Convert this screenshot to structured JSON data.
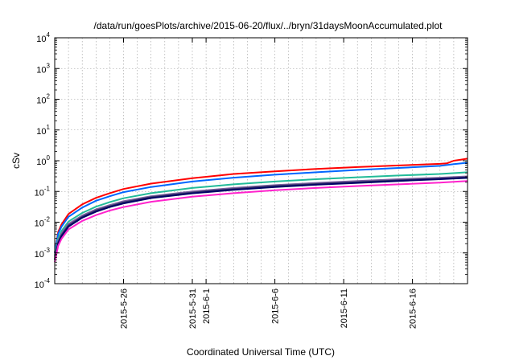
{
  "chart_data": {
    "type": "line",
    "title": "/data/run/goesPlots/archive/2015-06-20/flux/../bryn/31daysMoonAccumulated.plot",
    "xlabel": "Coordinated Universal Time (UTC)",
    "ylabel": "cSv",
    "yscale": "log",
    "ylim": [
      0.0001,
      10000
    ],
    "xlim": [
      "2015-05-21T00:00",
      "2015-06-20T00:00"
    ],
    "grid": true,
    "x_ticks": [
      {
        "date": "2015-05-26",
        "label": "2015-5-26"
      },
      {
        "date": "2015-05-31",
        "label": "2015-5-31"
      },
      {
        "date": "2015-06-01",
        "label": "2015-6-1"
      },
      {
        "date": "2015-06-06",
        "label": "2015-6-6"
      },
      {
        "date": "2015-06-11",
        "label": "2015-6-11"
      },
      {
        "date": "2015-06-16",
        "label": "2015-6-16"
      }
    ],
    "y_ticks": [
      {
        "value": 0.0001,
        "base": "10",
        "exp": "-4"
      },
      {
        "value": 0.001,
        "base": "10",
        "exp": "-3"
      },
      {
        "value": 0.01,
        "base": "10",
        "exp": "-2"
      },
      {
        "value": 0.1,
        "base": "10",
        "exp": "-1"
      },
      {
        "value": 1,
        "base": "10",
        "exp": "0"
      },
      {
        "value": 10,
        "base": "10",
        "exp": "1"
      },
      {
        "value": 100,
        "base": "10",
        "exp": "2"
      },
      {
        "value": 1000,
        "base": "10",
        "exp": "3"
      },
      {
        "value": 10000,
        "base": "10",
        "exp": "4"
      }
    ],
    "series": [
      {
        "color": "#ff0000",
        "values": [
          [
            "2015-05-21T00:00",
            0.001
          ],
          [
            "2015-05-21T06:00",
            0.0048
          ],
          [
            "2015-05-21T12:00",
            0.0085
          ],
          [
            "2015-05-22T00:00",
            0.0185
          ],
          [
            "2015-05-23T00:00",
            0.038
          ],
          [
            "2015-05-24T00:00",
            0.062
          ],
          [
            "2015-05-25T00:00",
            0.088
          ],
          [
            "2015-05-26T00:00",
            0.12
          ],
          [
            "2015-05-28T00:00",
            0.18
          ],
          [
            "2015-05-31T00:00",
            0.27
          ],
          [
            "2015-06-03T00:00",
            0.37
          ],
          [
            "2015-06-06T00:00",
            0.45
          ],
          [
            "2015-06-09T00:00",
            0.54
          ],
          [
            "2015-06-12T00:00",
            0.62
          ],
          [
            "2015-06-15T00:00",
            0.7
          ],
          [
            "2015-06-18T00:00",
            0.79
          ],
          [
            "2015-06-18T12:00",
            0.82
          ],
          [
            "2015-06-19T00:00",
            1.0
          ],
          [
            "2015-06-19T12:00",
            1.08
          ],
          [
            "2015-06-20T00:00",
            1.17
          ]
        ]
      },
      {
        "color": "#0066ff",
        "values": [
          [
            "2015-05-21T00:00",
            0.001
          ],
          [
            "2015-05-21T06:00",
            0.0042
          ],
          [
            "2015-05-21T12:00",
            0.0072
          ],
          [
            "2015-05-22T00:00",
            0.015
          ],
          [
            "2015-05-23T00:00",
            0.03
          ],
          [
            "2015-05-24T00:00",
            0.05
          ],
          [
            "2015-05-25T00:00",
            0.07
          ],
          [
            "2015-05-26T00:00",
            0.095
          ],
          [
            "2015-05-28T00:00",
            0.14
          ],
          [
            "2015-05-31T00:00",
            0.21
          ],
          [
            "2015-06-03T00:00",
            0.28
          ],
          [
            "2015-06-06T00:00",
            0.35
          ],
          [
            "2015-06-09T00:00",
            0.42
          ],
          [
            "2015-06-12T00:00",
            0.5
          ],
          [
            "2015-06-15T00:00",
            0.58
          ],
          [
            "2015-06-18T00:00",
            0.68
          ],
          [
            "2015-06-19T00:00",
            0.77
          ],
          [
            "2015-06-20T00:00",
            0.86
          ]
        ]
      },
      {
        "color": "#22bb99",
        "values": [
          [
            "2015-05-21T00:00",
            0.0008
          ],
          [
            "2015-05-21T06:00",
            0.003
          ],
          [
            "2015-05-21T12:00",
            0.0052
          ],
          [
            "2015-05-22T00:00",
            0.0105
          ],
          [
            "2015-05-23T00:00",
            0.02
          ],
          [
            "2015-05-24T00:00",
            0.032
          ],
          [
            "2015-05-25T00:00",
            0.045
          ],
          [
            "2015-05-26T00:00",
            0.06
          ],
          [
            "2015-05-28T00:00",
            0.088
          ],
          [
            "2015-05-31T00:00",
            0.13
          ],
          [
            "2015-06-03T00:00",
            0.17
          ],
          [
            "2015-06-06T00:00",
            0.21
          ],
          [
            "2015-06-09T00:00",
            0.25
          ],
          [
            "2015-06-12T00:00",
            0.29
          ],
          [
            "2015-06-15T00:00",
            0.33
          ],
          [
            "2015-06-18T00:00",
            0.37
          ],
          [
            "2015-06-20T00:00",
            0.42
          ]
        ]
      },
      {
        "color": "#7a5fa0",
        "values": [
          [
            "2015-05-21T00:00",
            0.0007
          ],
          [
            "2015-05-21T06:00",
            0.0025
          ],
          [
            "2015-05-21T12:00",
            0.0043
          ],
          [
            "2015-05-22T00:00",
            0.0088
          ],
          [
            "2015-05-23T00:00",
            0.0165
          ],
          [
            "2015-05-24T00:00",
            0.026
          ],
          [
            "2015-05-25T00:00",
            0.036
          ],
          [
            "2015-05-26T00:00",
            0.048
          ],
          [
            "2015-05-28T00:00",
            0.07
          ],
          [
            "2015-05-31T00:00",
            0.1
          ],
          [
            "2015-06-03T00:00",
            0.13
          ],
          [
            "2015-06-06T00:00",
            0.16
          ],
          [
            "2015-06-09T00:00",
            0.19
          ],
          [
            "2015-06-12T00:00",
            0.22
          ],
          [
            "2015-06-15T00:00",
            0.25
          ],
          [
            "2015-06-18T00:00",
            0.28
          ],
          [
            "2015-06-20T00:00",
            0.31
          ]
        ]
      },
      {
        "color": "#333366",
        "values": [
          [
            "2015-05-21T00:00",
            0.0006
          ],
          [
            "2015-05-21T06:00",
            0.0022
          ],
          [
            "2015-05-21T12:00",
            0.0038
          ],
          [
            "2015-05-22T00:00",
            0.0078
          ],
          [
            "2015-05-23T00:00",
            0.015
          ],
          [
            "2015-05-24T00:00",
            0.024
          ],
          [
            "2015-05-25T00:00",
            0.033
          ],
          [
            "2015-05-26T00:00",
            0.044
          ],
          [
            "2015-05-28T00:00",
            0.065
          ],
          [
            "2015-05-31T00:00",
            0.092
          ],
          [
            "2015-06-03T00:00",
            0.12
          ],
          [
            "2015-06-06T00:00",
            0.15
          ],
          [
            "2015-06-09T00:00",
            0.175
          ],
          [
            "2015-06-12T00:00",
            0.2
          ],
          [
            "2015-06-15T00:00",
            0.23
          ],
          [
            "2015-06-18T00:00",
            0.26
          ],
          [
            "2015-06-20T00:00",
            0.29
          ]
        ]
      },
      {
        "color": "#000066",
        "values": [
          [
            "2015-05-21T00:00",
            0.0006
          ],
          [
            "2015-05-21T06:00",
            0.002
          ],
          [
            "2015-05-21T12:00",
            0.0035
          ],
          [
            "2015-05-22T00:00",
            0.0072
          ],
          [
            "2015-05-23T00:00",
            0.014
          ],
          [
            "2015-05-24T00:00",
            0.022
          ],
          [
            "2015-05-25T00:00",
            0.031
          ],
          [
            "2015-05-26T00:00",
            0.041
          ],
          [
            "2015-05-28T00:00",
            0.061
          ],
          [
            "2015-05-31T00:00",
            0.087
          ],
          [
            "2015-06-03T00:00",
            0.113
          ],
          [
            "2015-06-06T00:00",
            0.14
          ],
          [
            "2015-06-09T00:00",
            0.165
          ],
          [
            "2015-06-12T00:00",
            0.19
          ],
          [
            "2015-06-15T00:00",
            0.22
          ],
          [
            "2015-06-18T00:00",
            0.25
          ],
          [
            "2015-06-20T00:00",
            0.275
          ]
        ]
      },
      {
        "color": "#ff22cc",
        "values": [
          [
            "2015-05-21T00:00",
            0.0005
          ],
          [
            "2015-05-21T06:00",
            0.0017
          ],
          [
            "2015-05-21T12:00",
            0.0029
          ],
          [
            "2015-05-22T00:00",
            0.0058
          ],
          [
            "2015-05-23T00:00",
            0.011
          ],
          [
            "2015-05-24T00:00",
            0.017
          ],
          [
            "2015-05-25T00:00",
            0.024
          ],
          [
            "2015-05-26T00:00",
            0.031
          ],
          [
            "2015-05-28T00:00",
            0.046
          ],
          [
            "2015-05-31T00:00",
            0.068
          ],
          [
            "2015-06-03T00:00",
            0.088
          ],
          [
            "2015-06-06T00:00",
            0.11
          ],
          [
            "2015-06-09T00:00",
            0.13
          ],
          [
            "2015-06-12T00:00",
            0.15
          ],
          [
            "2015-06-15T00:00",
            0.17
          ],
          [
            "2015-06-18T00:00",
            0.195
          ],
          [
            "2015-06-20T00:00",
            0.22
          ]
        ]
      }
    ]
  }
}
